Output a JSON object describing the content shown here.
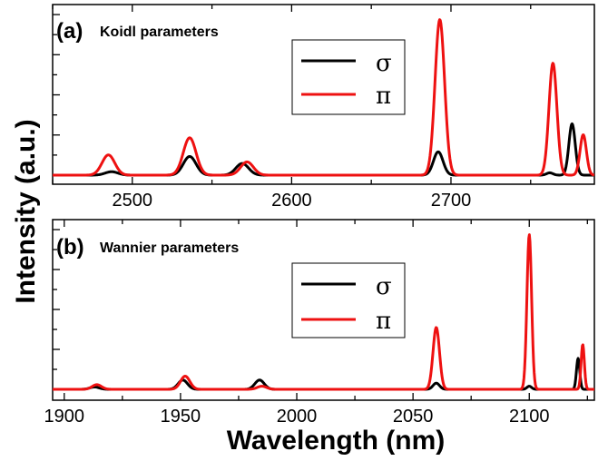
{
  "colors": {
    "sigma": "#000000",
    "pi": "#ee1111"
  },
  "ylabel": "Intensity  (a.u.)",
  "xlabel": "Wavelength  (nm)",
  "chart_data": [
    {
      "type": "line",
      "panel_label": "(a)",
      "panel_title": "Koidl parameters",
      "xlim": [
        2450,
        2790
      ],
      "ylim": [
        0,
        1.05
      ],
      "xticks": [
        2500,
        2600,
        2700
      ],
      "xtick_labels": [
        "2500",
        "2600",
        "2700"
      ],
      "grid": false,
      "legend_position": "top-center",
      "legend": [
        "σ",
        "π"
      ],
      "series": [
        {
          "name": "σ",
          "color": "#000000",
          "peaks": [
            [
              2487,
              0.022,
              4
            ],
            [
              2536,
              0.12,
              4
            ],
            [
              2569,
              0.075,
              4
            ],
            [
              2692,
              0.15,
              3
            ],
            [
              2762,
              0.015,
              2
            ],
            [
              2776,
              0.33,
              2
            ]
          ]
        },
        {
          "name": "π",
          "color": "#ee1111",
          "peaks": [
            [
              2485,
              0.13,
              4
            ],
            [
              2536,
              0.24,
              4
            ],
            [
              2572,
              0.085,
              4
            ],
            [
              2693,
              1.0,
              3
            ],
            [
              2764,
              0.72,
              2.5
            ],
            [
              2783,
              0.26,
              2
            ]
          ]
        }
      ]
    },
    {
      "type": "line",
      "panel_label": "(b)",
      "panel_title": "Wannier parameters",
      "xlim": [
        1895,
        2128
      ],
      "ylim": [
        0,
        1.05
      ],
      "xticks": [
        1900,
        1950,
        2000,
        2050,
        2100
      ],
      "xtick_labels": [
        "1900",
        "1950",
        "2000",
        "2050",
        "2100"
      ],
      "grid": false,
      "legend_position": "top-center",
      "legend": [
        "σ",
        "π"
      ],
      "series": [
        {
          "name": "σ",
          "color": "#000000",
          "peaks": [
            [
              1913,
              0.015,
              2
            ],
            [
              1951,
              0.06,
              2
            ],
            [
              1984,
              0.06,
              2
            ],
            [
              2060,
              0.04,
              1.4
            ],
            [
              2100,
              0.02,
              1
            ],
            [
              2121,
              0.2,
              0.7
            ]
          ]
        },
        {
          "name": "π",
          "color": "#ee1111",
          "peaks": [
            [
              1914,
              0.03,
              2
            ],
            [
              1952,
              0.085,
              2
            ],
            [
              1985,
              0.02,
              2
            ],
            [
              2060,
              0.4,
              1.4
            ],
            [
              2100,
              1.0,
              1
            ],
            [
              2123,
              0.29,
              0.7
            ]
          ]
        }
      ]
    }
  ]
}
